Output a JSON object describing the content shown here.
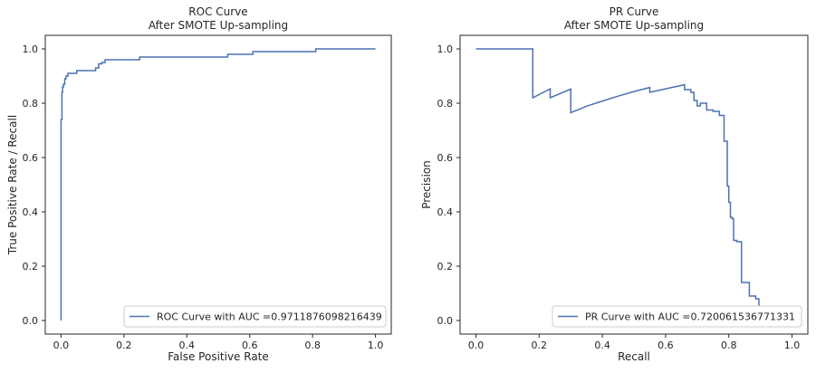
{
  "chart_data": [
    {
      "type": "line",
      "title": "ROC Curve\nAfter SMOTE Up-sampling",
      "title_lines": [
        "ROC Curve",
        "After SMOTE Up-sampling"
      ],
      "xlabel": "False Positive Rate",
      "ylabel": "True Positive Rate / Recall",
      "xlim": [
        -0.05,
        1.05
      ],
      "ylim": [
        -0.05,
        1.05
      ],
      "xticks": [
        0.0,
        0.2,
        0.4,
        0.6,
        0.8,
        1.0
      ],
      "xtick_labels": [
        "0.0",
        "0.2",
        "0.4",
        "0.6",
        "0.8",
        "1.0"
      ],
      "yticks": [
        0.0,
        0.2,
        0.4,
        0.6,
        0.8,
        1.0
      ],
      "ytick_labels": [
        "0.0",
        "0.2",
        "0.4",
        "0.6",
        "0.8",
        "1.0"
      ],
      "grid": false,
      "legend": "lower right",
      "color": "#4c72b0",
      "series": [
        {
          "name": "ROC Curve with AUC =0.9711876098216439",
          "x": [
            0.0,
            0.0,
            0.003,
            0.003,
            0.005,
            0.005,
            0.008,
            0.008,
            0.012,
            0.012,
            0.016,
            0.016,
            0.022,
            0.022,
            0.05,
            0.05,
            0.11,
            0.11,
            0.12,
            0.12,
            0.13,
            0.13,
            0.14,
            0.14,
            0.25,
            0.25,
            0.53,
            0.53,
            0.61,
            0.61,
            0.81,
            0.81,
            1.0
          ],
          "y": [
            0.0,
            0.74,
            0.74,
            0.84,
            0.84,
            0.86,
            0.86,
            0.87,
            0.87,
            0.89,
            0.89,
            0.9,
            0.9,
            0.91,
            0.91,
            0.92,
            0.92,
            0.93,
            0.93,
            0.945,
            0.945,
            0.95,
            0.95,
            0.96,
            0.96,
            0.97,
            0.97,
            0.98,
            0.98,
            0.99,
            0.99,
            1.0,
            1.0
          ]
        }
      ]
    },
    {
      "type": "line",
      "title": "PR Curve\nAfter SMOTE Up-sampling",
      "title_lines": [
        "PR Curve",
        "After SMOTE Up-sampling"
      ],
      "xlabel": "Recall",
      "ylabel": "Precision",
      "xlim": [
        -0.05,
        1.05
      ],
      "ylim": [
        -0.05,
        1.05
      ],
      "xticks": [
        0.0,
        0.2,
        0.4,
        0.6,
        0.8,
        1.0
      ],
      "xtick_labels": [
        "0.0",
        "0.2",
        "0.4",
        "0.6",
        "0.8",
        "1.0"
      ],
      "yticks": [
        0.0,
        0.2,
        0.4,
        0.6,
        0.8,
        1.0
      ],
      "ytick_labels": [
        "0.0",
        "0.2",
        "0.4",
        "0.6",
        "0.8",
        "1.0"
      ],
      "grid": false,
      "legend": "lower right",
      "color": "#4c72b0",
      "series": [
        {
          "name": "PR Curve with AUC =0.720061536771331",
          "x": [
            0.0,
            0.18,
            0.18,
            0.235,
            0.235,
            0.3,
            0.3,
            0.35,
            0.4,
            0.45,
            0.5,
            0.55,
            0.55,
            0.6,
            0.66,
            0.66,
            0.68,
            0.68,
            0.69,
            0.69,
            0.7,
            0.7,
            0.71,
            0.71,
            0.73,
            0.73,
            0.75,
            0.75,
            0.77,
            0.77,
            0.785,
            0.785,
            0.795,
            0.795,
            0.8,
            0.8,
            0.805,
            0.805,
            0.81,
            0.81,
            0.815,
            0.815,
            0.825,
            0.825,
            0.84,
            0.84,
            0.865,
            0.865,
            0.885,
            0.885,
            0.895,
            0.895,
            0.905,
            0.905
          ],
          "y": [
            1.0,
            1.0,
            0.82,
            0.853,
            0.82,
            0.852,
            0.765,
            0.789,
            0.808,
            0.826,
            0.843,
            0.858,
            0.84,
            0.853,
            0.868,
            0.85,
            0.85,
            0.84,
            0.84,
            0.81,
            0.81,
            0.79,
            0.79,
            0.8,
            0.8,
            0.775,
            0.775,
            0.77,
            0.77,
            0.755,
            0.755,
            0.66,
            0.66,
            0.495,
            0.495,
            0.435,
            0.435,
            0.38,
            0.38,
            0.375,
            0.375,
            0.295,
            0.295,
            0.29,
            0.29,
            0.14,
            0.14,
            0.09,
            0.09,
            0.08,
            0.08,
            0.035,
            0.035,
            0.03
          ]
        }
      ]
    }
  ]
}
